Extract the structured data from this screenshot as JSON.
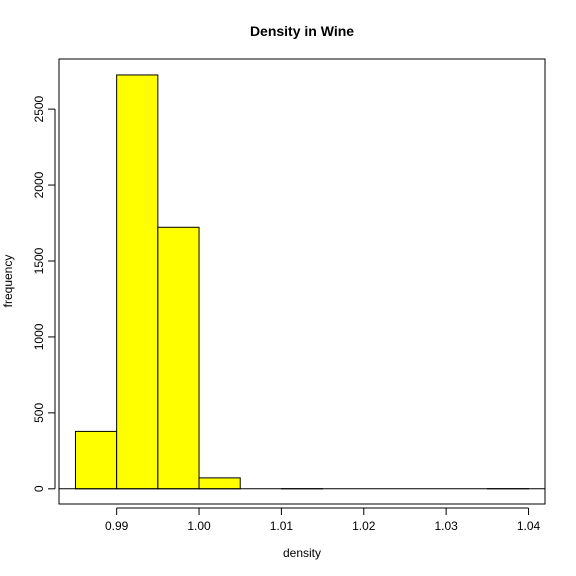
{
  "chart_data": {
    "type": "bar",
    "title": "Density in Wine",
    "xlabel": "density",
    "ylabel": "frequency",
    "bin_edges": [
      0.985,
      0.99,
      0.995,
      1.0,
      1.005,
      1.01,
      1.015,
      1.02,
      1.025,
      1.03,
      1.035,
      1.04
    ],
    "values": [
      378,
      2725,
      1722,
      72,
      0,
      1,
      0,
      0,
      0,
      0,
      1
    ],
    "x_ticks": [
      0.99,
      1.0,
      1.01,
      1.02,
      1.03,
      1.04
    ],
    "x_tick_labels": [
      "0.99",
      "1.00",
      "1.01",
      "1.02",
      "1.03",
      "1.04"
    ],
    "y_ticks": [
      0,
      500,
      1000,
      1500,
      2000,
      2500
    ],
    "y_tick_labels": [
      "0",
      "500",
      "1000",
      "1500",
      "2000",
      "2500"
    ],
    "xlim": [
      0.983,
      1.042
    ],
    "ylim": [
      -100,
      2830
    ],
    "bar_color": "#ffff00",
    "grid": false
  }
}
